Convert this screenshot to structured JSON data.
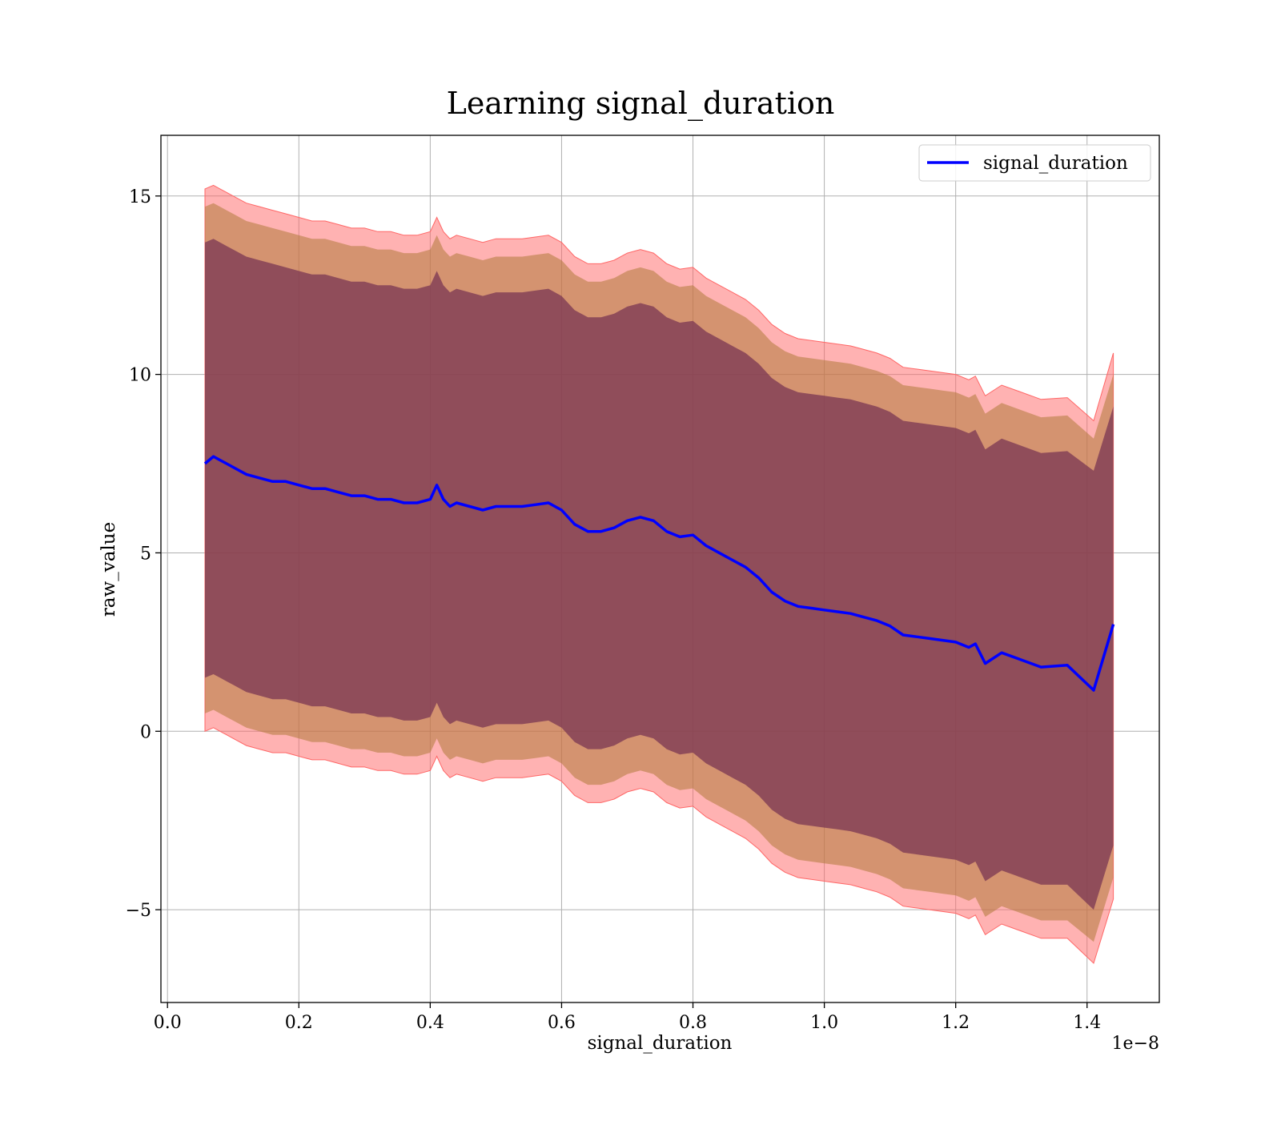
{
  "chart_data": {
    "type": "line",
    "title": "Learning signal_duration",
    "xlabel": "signal_duration",
    "ylabel": "raw_value",
    "x_offset_label": "1e−8",
    "xlim": [
      -0.01,
      1.51
    ],
    "ylim": [
      -7.6,
      16.7
    ],
    "x_ticks": [
      0.0,
      0.2,
      0.4,
      0.6,
      0.8,
      1.0,
      1.2,
      1.4
    ],
    "x_tick_labels": [
      "0.0",
      "0.2",
      "0.4",
      "0.6",
      "0.8",
      "1.0",
      "1.2",
      "1.4"
    ],
    "y_ticks": [
      -5,
      0,
      5,
      10,
      15
    ],
    "y_tick_labels": [
      "−5",
      "0",
      "5",
      "10",
      "15"
    ],
    "grid": true,
    "legend": {
      "position": "upper right",
      "entries": [
        "signal_duration"
      ]
    },
    "colors": {
      "line": "#0000ff",
      "band_outer": "#ff6666",
      "band_middle": "#b07a3a",
      "band_inner": "#7a3553"
    },
    "series": [
      {
        "name": "signal_duration",
        "x": [
          0.057,
          0.07,
          0.08,
          0.09,
          0.1,
          0.12,
          0.14,
          0.16,
          0.18,
          0.2,
          0.22,
          0.24,
          0.26,
          0.28,
          0.3,
          0.32,
          0.34,
          0.36,
          0.38,
          0.4,
          0.41,
          0.42,
          0.43,
          0.44,
          0.46,
          0.48,
          0.5,
          0.52,
          0.54,
          0.56,
          0.58,
          0.6,
          0.62,
          0.64,
          0.66,
          0.68,
          0.7,
          0.72,
          0.74,
          0.76,
          0.78,
          0.8,
          0.82,
          0.84,
          0.86,
          0.88,
          0.9,
          0.92,
          0.94,
          0.96,
          0.98,
          1.0,
          1.02,
          1.04,
          1.06,
          1.08,
          1.1,
          1.12,
          1.14,
          1.16,
          1.18,
          1.2,
          1.22,
          1.23,
          1.245,
          1.27,
          1.3,
          1.33,
          1.37,
          1.41,
          1.44
        ],
        "mean": [
          7.5,
          7.7,
          7.6,
          7.5,
          7.4,
          7.2,
          7.1,
          7.0,
          7.0,
          6.9,
          6.8,
          6.8,
          6.7,
          6.6,
          6.6,
          6.5,
          6.5,
          6.4,
          6.4,
          6.5,
          6.9,
          6.5,
          6.3,
          6.4,
          6.3,
          6.2,
          6.3,
          6.3,
          6.3,
          6.35,
          6.4,
          6.2,
          5.8,
          5.6,
          5.6,
          5.7,
          5.9,
          6.0,
          5.9,
          5.6,
          5.45,
          5.5,
          5.2,
          5.0,
          4.8,
          4.6,
          4.3,
          3.9,
          3.65,
          3.5,
          3.45,
          3.4,
          3.35,
          3.3,
          3.2,
          3.1,
          2.95,
          2.7,
          2.65,
          2.6,
          2.55,
          2.5,
          2.35,
          2.45,
          1.9,
          2.2,
          2.0,
          1.8,
          1.85,
          1.15,
          3.0
        ],
        "inner_upper": [
          13.7,
          13.8,
          13.7,
          13.6,
          13.5,
          13.3,
          13.2,
          13.1,
          13.0,
          12.9,
          12.8,
          12.8,
          12.7,
          12.6,
          12.6,
          12.5,
          12.5,
          12.4,
          12.4,
          12.5,
          12.9,
          12.5,
          12.3,
          12.4,
          12.3,
          12.2,
          12.3,
          12.3,
          12.3,
          12.35,
          12.4,
          12.2,
          11.8,
          11.6,
          11.6,
          11.7,
          11.9,
          12.0,
          11.9,
          11.6,
          11.45,
          11.5,
          11.2,
          11.0,
          10.8,
          10.6,
          10.3,
          9.9,
          9.65,
          9.5,
          9.45,
          9.4,
          9.35,
          9.3,
          9.2,
          9.1,
          8.95,
          8.7,
          8.65,
          8.6,
          8.55,
          8.5,
          8.35,
          8.45,
          7.9,
          8.2,
          8.0,
          7.8,
          7.85,
          7.3,
          9.1
        ],
        "inner_lower": [
          1.5,
          1.6,
          1.5,
          1.4,
          1.3,
          1.1,
          1.0,
          0.9,
          0.9,
          0.8,
          0.7,
          0.7,
          0.6,
          0.5,
          0.5,
          0.4,
          0.4,
          0.3,
          0.3,
          0.4,
          0.8,
          0.4,
          0.2,
          0.3,
          0.2,
          0.1,
          0.2,
          0.2,
          0.2,
          0.25,
          0.3,
          0.1,
          -0.3,
          -0.5,
          -0.5,
          -0.4,
          -0.2,
          -0.1,
          -0.2,
          -0.5,
          -0.65,
          -0.6,
          -0.9,
          -1.1,
          -1.3,
          -1.5,
          -1.8,
          -2.2,
          -2.45,
          -2.6,
          -2.65,
          -2.7,
          -2.75,
          -2.8,
          -2.9,
          -3.0,
          -3.15,
          -3.4,
          -3.45,
          -3.5,
          -3.55,
          -3.6,
          -3.75,
          -3.65,
          -4.2,
          -3.9,
          -4.1,
          -4.3,
          -4.3,
          -5.0,
          -3.2
        ],
        "middle_upper": [
          14.7,
          14.8,
          14.7,
          14.6,
          14.5,
          14.3,
          14.2,
          14.1,
          14.0,
          13.9,
          13.8,
          13.8,
          13.7,
          13.6,
          13.6,
          13.5,
          13.5,
          13.4,
          13.4,
          13.5,
          13.9,
          13.5,
          13.3,
          13.4,
          13.3,
          13.2,
          13.3,
          13.3,
          13.3,
          13.35,
          13.4,
          13.2,
          12.8,
          12.6,
          12.6,
          12.7,
          12.9,
          13.0,
          12.9,
          12.6,
          12.45,
          12.5,
          12.2,
          12.0,
          11.8,
          11.6,
          11.3,
          10.9,
          10.65,
          10.5,
          10.45,
          10.4,
          10.35,
          10.3,
          10.2,
          10.1,
          9.95,
          9.7,
          9.65,
          9.6,
          9.55,
          9.5,
          9.35,
          9.45,
          8.9,
          9.2,
          9.0,
          8.8,
          8.85,
          8.2,
          10.0
        ],
        "middle_lower": [
          0.5,
          0.6,
          0.5,
          0.4,
          0.3,
          0.1,
          0.0,
          -0.1,
          -0.1,
          -0.2,
          -0.3,
          -0.3,
          -0.4,
          -0.5,
          -0.5,
          -0.6,
          -0.6,
          -0.7,
          -0.7,
          -0.6,
          -0.2,
          -0.6,
          -0.8,
          -0.7,
          -0.8,
          -0.9,
          -0.8,
          -0.8,
          -0.8,
          -0.75,
          -0.7,
          -0.9,
          -1.3,
          -1.5,
          -1.5,
          -1.4,
          -1.2,
          -1.1,
          -1.2,
          -1.5,
          -1.65,
          -1.6,
          -1.9,
          -2.1,
          -2.3,
          -2.5,
          -2.8,
          -3.2,
          -3.45,
          -3.6,
          -3.65,
          -3.7,
          -3.75,
          -3.8,
          -3.9,
          -4.0,
          -4.15,
          -4.4,
          -4.45,
          -4.5,
          -4.55,
          -4.6,
          -4.75,
          -4.65,
          -5.2,
          -4.9,
          -5.1,
          -5.3,
          -5.3,
          -5.9,
          -4.1
        ],
        "outer_upper": [
          15.2,
          15.3,
          15.2,
          15.1,
          15.0,
          14.8,
          14.7,
          14.6,
          14.5,
          14.4,
          14.3,
          14.3,
          14.2,
          14.1,
          14.1,
          14.0,
          14.0,
          13.9,
          13.9,
          14.0,
          14.4,
          14.0,
          13.8,
          13.9,
          13.8,
          13.7,
          13.8,
          13.8,
          13.8,
          13.85,
          13.9,
          13.7,
          13.3,
          13.1,
          13.1,
          13.2,
          13.4,
          13.5,
          13.4,
          13.1,
          12.95,
          13.0,
          12.7,
          12.5,
          12.3,
          12.1,
          11.8,
          11.4,
          11.15,
          11.0,
          10.95,
          10.9,
          10.85,
          10.8,
          10.7,
          10.6,
          10.45,
          10.2,
          10.15,
          10.1,
          10.05,
          10.0,
          9.85,
          9.95,
          9.4,
          9.7,
          9.5,
          9.3,
          9.35,
          8.7,
          10.6
        ],
        "outer_lower": [
          0.0,
          0.1,
          0.0,
          -0.1,
          -0.2,
          -0.4,
          -0.5,
          -0.6,
          -0.6,
          -0.7,
          -0.8,
          -0.8,
          -0.9,
          -1.0,
          -1.0,
          -1.1,
          -1.1,
          -1.2,
          -1.2,
          -1.1,
          -0.7,
          -1.1,
          -1.3,
          -1.2,
          -1.3,
          -1.4,
          -1.3,
          -1.3,
          -1.3,
          -1.25,
          -1.2,
          -1.4,
          -1.8,
          -2.0,
          -2.0,
          -1.9,
          -1.7,
          -1.6,
          -1.7,
          -2.0,
          -2.15,
          -2.1,
          -2.4,
          -2.6,
          -2.8,
          -3.0,
          -3.3,
          -3.7,
          -3.95,
          -4.1,
          -4.15,
          -4.2,
          -4.25,
          -4.3,
          -4.4,
          -4.5,
          -4.65,
          -4.9,
          -4.95,
          -5.0,
          -5.05,
          -5.1,
          -5.25,
          -5.15,
          -5.7,
          -5.4,
          -5.6,
          -5.8,
          -5.8,
          -6.5,
          -4.7
        ]
      }
    ]
  }
}
